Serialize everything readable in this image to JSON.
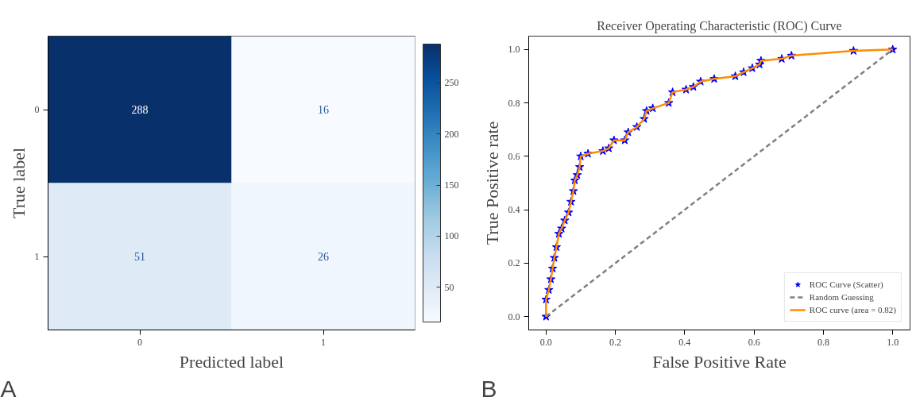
{
  "chart_data": [
    {
      "type": "heatmap",
      "xlabel": "Predicted label",
      "ylabel": "True label",
      "categories": [
        "0",
        "1"
      ],
      "y_categories": [
        "0",
        "1"
      ],
      "cells": [
        [
          288,
          16
        ],
        [
          51,
          26
        ]
      ],
      "data_labels": true,
      "clim": [
        16,
        288
      ],
      "cticks": [
        50,
        100,
        150,
        200,
        250
      ],
      "grid": false,
      "annotations": [
        "A"
      ]
    },
    {
      "type": "line",
      "title": "Receiver Operating Characteristic (ROC) Curve",
      "xlabel": "False Positive Rate",
      "ylabel": "True Positive rate",
      "xlim": [
        -0.05,
        1.05
      ],
      "ylim": [
        -0.05,
        1.05
      ],
      "xticks": [
        {
          "value": 0,
          "label": "0.0"
        },
        0.2,
        0.4,
        0.6,
        0.8,
        {
          "value": 1,
          "label": "1.0"
        }
      ],
      "yticks": [
        {
          "value": 0,
          "label": "0.0"
        },
        0.2,
        0.4,
        0.6,
        0.8,
        {
          "value": 1,
          "label": "1.0"
        }
      ],
      "grid": false,
      "legend": "bottom right",
      "annotations": [
        "B"
      ],
      "series": [
        {
          "name": "ROC Curve (Scatter)",
          "type": "scatter",
          "marker": "star",
          "color": "#0000ff",
          "x": [
            0,
            0,
            0.008,
            0.014,
            0.019,
            0.024,
            0.03,
            0.037,
            0.045,
            0.054,
            0.065,
            0.072,
            0.079,
            0.083,
            0.09,
            0.097,
            0.1,
            0.121,
            0.164,
            0.181,
            0.196,
            0.227,
            0.237,
            0.262,
            0.283,
            0.29,
            0.308,
            0.354,
            0.365,
            0.404,
            0.425,
            0.446,
            0.485,
            0.546,
            0.57,
            0.595,
            0.616,
            0.62,
            0.68,
            0.708,
            0.887,
            1.0
          ],
          "values": [
            0,
            0.064,
            0.1,
            0.14,
            0.18,
            0.22,
            0.26,
            0.31,
            0.33,
            0.36,
            0.39,
            0.43,
            0.47,
            0.51,
            0.53,
            0.56,
            0.6,
            0.61,
            0.62,
            0.63,
            0.66,
            0.66,
            0.69,
            0.71,
            0.74,
            0.77,
            0.78,
            0.8,
            0.84,
            0.85,
            0.86,
            0.88,
            0.89,
            0.9,
            0.915,
            0.93,
            0.944,
            0.958,
            0.965,
            0.977,
            0.995,
            1.0
          ]
        },
        {
          "name": "Random Guessing",
          "type": "line",
          "line_style": "dashed",
          "color": "#808080",
          "x": [
            0,
            1
          ],
          "values": [
            0,
            1
          ]
        },
        {
          "name": "ROC curve (area = 0.82)",
          "type": "line",
          "line_style": "solid",
          "color": "#ff8c00",
          "x": [
            0,
            0,
            0.008,
            0.014,
            0.019,
            0.024,
            0.03,
            0.037,
            0.045,
            0.054,
            0.065,
            0.072,
            0.079,
            0.083,
            0.09,
            0.097,
            0.1,
            0.121,
            0.164,
            0.181,
            0.196,
            0.227,
            0.237,
            0.262,
            0.283,
            0.29,
            0.308,
            0.354,
            0.365,
            0.404,
            0.425,
            0.446,
            0.485,
            0.546,
            0.57,
            0.595,
            0.616,
            0.62,
            0.68,
            0.708,
            0.887,
            1.0
          ],
          "values": [
            0,
            0.064,
            0.1,
            0.14,
            0.18,
            0.22,
            0.26,
            0.31,
            0.33,
            0.36,
            0.39,
            0.43,
            0.47,
            0.51,
            0.53,
            0.56,
            0.6,
            0.61,
            0.62,
            0.63,
            0.66,
            0.66,
            0.69,
            0.71,
            0.74,
            0.77,
            0.78,
            0.8,
            0.84,
            0.85,
            0.86,
            0.88,
            0.89,
            0.9,
            0.915,
            0.93,
            0.944,
            0.958,
            0.965,
            0.977,
            0.995,
            1.0
          ]
        }
      ]
    }
  ]
}
